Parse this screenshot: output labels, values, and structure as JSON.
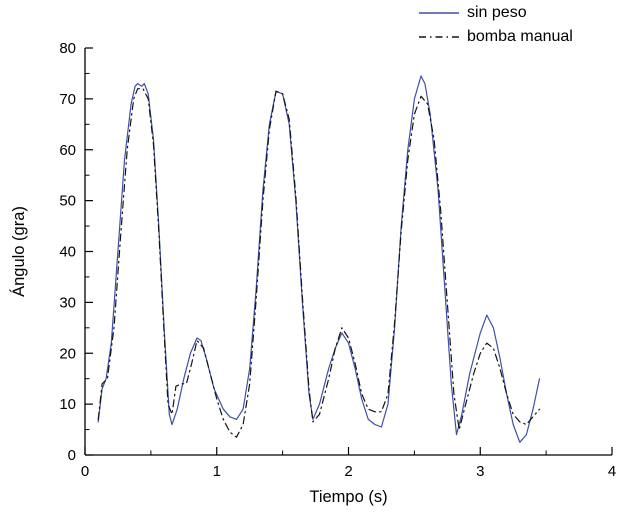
{
  "chart_data": {
    "type": "line",
    "title": "",
    "xlabel": "Tiempo (s)",
    "ylabel": "Ángulo (gra)",
    "xlim": [
      0,
      4
    ],
    "ylim": [
      0,
      80
    ],
    "xticks": [
      0,
      1,
      2,
      3,
      4
    ],
    "yticks": [
      0,
      10,
      20,
      30,
      40,
      50,
      60,
      70,
      80
    ],
    "x_minor_step": 0.5,
    "y_minor_step": 5,
    "grid": false,
    "legend_position": "top-right",
    "axis_color": "#000000",
    "series": [
      {
        "name": "sin peso",
        "color": "#3e4fa8",
        "style": "solid",
        "dash": "",
        "width": 1.2,
        "points": [
          [
            0.1,
            6.5
          ],
          [
            0.13,
            13
          ],
          [
            0.16,
            15
          ],
          [
            0.2,
            22
          ],
          [
            0.25,
            40
          ],
          [
            0.3,
            58
          ],
          [
            0.35,
            69
          ],
          [
            0.38,
            72.5
          ],
          [
            0.4,
            73
          ],
          [
            0.43,
            72.5
          ],
          [
            0.45,
            73
          ],
          [
            0.48,
            71
          ],
          [
            0.52,
            62
          ],
          [
            0.56,
            45
          ],
          [
            0.6,
            25
          ],
          [
            0.64,
            8
          ],
          [
            0.66,
            6
          ],
          [
            0.7,
            9
          ],
          [
            0.75,
            15
          ],
          [
            0.8,
            20
          ],
          [
            0.85,
            23
          ],
          [
            0.88,
            22.5
          ],
          [
            0.92,
            19
          ],
          [
            0.98,
            13
          ],
          [
            1.05,
            9
          ],
          [
            1.1,
            7.5
          ],
          [
            1.15,
            7
          ],
          [
            1.2,
            9
          ],
          [
            1.25,
            17
          ],
          [
            1.3,
            33
          ],
          [
            1.35,
            52
          ],
          [
            1.4,
            65
          ],
          [
            1.45,
            71.5
          ],
          [
            1.5,
            71
          ],
          [
            1.55,
            65
          ],
          [
            1.6,
            50
          ],
          [
            1.65,
            30
          ],
          [
            1.7,
            12
          ],
          [
            1.73,
            7
          ],
          [
            1.78,
            10
          ],
          [
            1.85,
            17
          ],
          [
            1.9,
            21
          ],
          [
            1.95,
            24
          ],
          [
            2.0,
            22
          ],
          [
            2.05,
            17
          ],
          [
            2.1,
            11
          ],
          [
            2.15,
            7
          ],
          [
            2.2,
            6
          ],
          [
            2.25,
            5.5
          ],
          [
            2.3,
            10
          ],
          [
            2.35,
            25
          ],
          [
            2.4,
            45
          ],
          [
            2.45,
            60
          ],
          [
            2.5,
            70
          ],
          [
            2.55,
            74.5
          ],
          [
            2.58,
            73
          ],
          [
            2.62,
            67
          ],
          [
            2.68,
            52
          ],
          [
            2.73,
            33
          ],
          [
            2.78,
            14
          ],
          [
            2.82,
            4
          ],
          [
            2.86,
            8
          ],
          [
            2.92,
            16
          ],
          [
            3.0,
            24
          ],
          [
            3.05,
            27.5
          ],
          [
            3.1,
            25
          ],
          [
            3.15,
            19
          ],
          [
            3.2,
            12
          ],
          [
            3.25,
            6
          ],
          [
            3.3,
            2.5
          ],
          [
            3.35,
            4
          ],
          [
            3.4,
            9
          ],
          [
            3.45,
            15
          ]
        ]
      },
      {
        "name": "bomba manual",
        "color": "#141414",
        "style": "dash-dot",
        "dash": "7 4 1.5 4",
        "width": 1.2,
        "points": [
          [
            0.1,
            7
          ],
          [
            0.13,
            14
          ],
          [
            0.17,
            15
          ],
          [
            0.22,
            25
          ],
          [
            0.27,
            43
          ],
          [
            0.32,
            60
          ],
          [
            0.37,
            70
          ],
          [
            0.4,
            72
          ],
          [
            0.44,
            72
          ],
          [
            0.48,
            70
          ],
          [
            0.52,
            61
          ],
          [
            0.56,
            44
          ],
          [
            0.6,
            24
          ],
          [
            0.63,
            10
          ],
          [
            0.66,
            8
          ],
          [
            0.69,
            13.5
          ],
          [
            0.73,
            14
          ],
          [
            0.77,
            14
          ],
          [
            0.81,
            18
          ],
          [
            0.85,
            22.5
          ],
          [
            0.9,
            21
          ],
          [
            0.95,
            16
          ],
          [
            1.0,
            11
          ],
          [
            1.05,
            7
          ],
          [
            1.1,
            4.5
          ],
          [
            1.15,
            3.5
          ],
          [
            1.2,
            6
          ],
          [
            1.25,
            14
          ],
          [
            1.3,
            31
          ],
          [
            1.35,
            50
          ],
          [
            1.4,
            64
          ],
          [
            1.45,
            71.5
          ],
          [
            1.5,
            71
          ],
          [
            1.55,
            66
          ],
          [
            1.6,
            51
          ],
          [
            1.65,
            31
          ],
          [
            1.7,
            13
          ],
          [
            1.73,
            6.5
          ],
          [
            1.78,
            8
          ],
          [
            1.85,
            15
          ],
          [
            1.9,
            21
          ],
          [
            1.95,
            25
          ],
          [
            2.0,
            23
          ],
          [
            2.05,
            18
          ],
          [
            2.1,
            12
          ],
          [
            2.15,
            9
          ],
          [
            2.2,
            8.5
          ],
          [
            2.25,
            8.5
          ],
          [
            2.3,
            12
          ],
          [
            2.35,
            26
          ],
          [
            2.4,
            44
          ],
          [
            2.45,
            58
          ],
          [
            2.5,
            67
          ],
          [
            2.55,
            70.5
          ],
          [
            2.6,
            69
          ],
          [
            2.65,
            62
          ],
          [
            2.7,
            48
          ],
          [
            2.75,
            30
          ],
          [
            2.8,
            12
          ],
          [
            2.84,
            5
          ],
          [
            2.88,
            9
          ],
          [
            2.95,
            16
          ],
          [
            3.0,
            20
          ],
          [
            3.05,
            22
          ],
          [
            3.1,
            21
          ],
          [
            3.15,
            17
          ],
          [
            3.2,
            12
          ],
          [
            3.25,
            8
          ],
          [
            3.3,
            6.5
          ],
          [
            3.35,
            6
          ],
          [
            3.4,
            7.5
          ],
          [
            3.45,
            9
          ]
        ]
      }
    ]
  }
}
